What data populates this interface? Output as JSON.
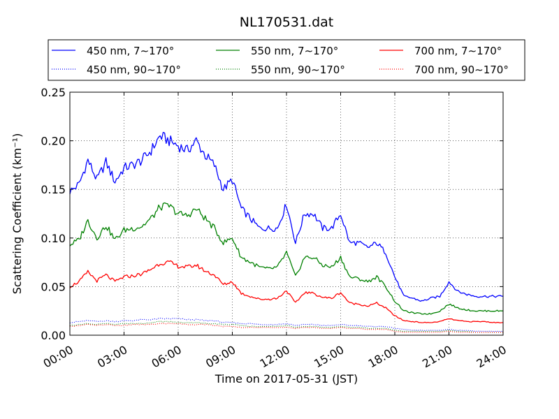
{
  "chart_data": {
    "type": "line",
    "title": "NL170531.dat",
    "xlabel": "Time on 2017-05-31 (JST)",
    "ylabel": "Scattering Coefficient (km⁻¹)",
    "xlim": [
      "00:00",
      "24:00"
    ],
    "ylim": [
      0.0,
      0.25
    ],
    "x_unit": "hours",
    "x_ticks": [
      "00:00",
      "03:00",
      "06:00",
      "09:00",
      "12:00",
      "15:00",
      "18:00",
      "21:00",
      "24:00"
    ],
    "y_ticks": [
      "0.00",
      "0.05",
      "0.10",
      "0.15",
      "0.20",
      "0.25"
    ],
    "grid": true,
    "legend_position": "top, above plot, 3 columns",
    "x": [
      0,
      0.5,
      1,
      1.5,
      2,
      2.5,
      3,
      3.5,
      4,
      4.5,
      5,
      5.5,
      6,
      6.5,
      7,
      7.5,
      8,
      8.5,
      9,
      9.5,
      10,
      10.5,
      11,
      11.5,
      12,
      12.5,
      13,
      13.5,
      14,
      14.5,
      15,
      15.5,
      16,
      16.5,
      17,
      17.5,
      18,
      18.5,
      19,
      19.5,
      20,
      20.5,
      21,
      21.5,
      22,
      22.5,
      23,
      23.5,
      24
    ],
    "series": [
      {
        "name": "450 nm, 7∼170°",
        "color": "#0000ff",
        "style": "solid",
        "values": [
          0.148,
          0.155,
          0.18,
          0.16,
          0.178,
          0.158,
          0.172,
          0.175,
          0.18,
          0.19,
          0.205,
          0.2,
          0.195,
          0.19,
          0.2,
          0.185,
          0.175,
          0.15,
          0.16,
          0.13,
          0.12,
          0.11,
          0.11,
          0.11,
          0.135,
          0.095,
          0.125,
          0.125,
          0.11,
          0.11,
          0.125,
          0.095,
          0.095,
          0.09,
          0.095,
          0.085,
          0.06,
          0.04,
          0.038,
          0.035,
          0.038,
          0.04,
          0.055,
          0.045,
          0.042,
          0.04,
          0.04,
          0.04,
          0.04
        ]
      },
      {
        "name": "450 nm, 90∼170°",
        "color": "#0000ff",
        "style": "dotted",
        "values": [
          0.013,
          0.014,
          0.015,
          0.014,
          0.015,
          0.014,
          0.015,
          0.015,
          0.016,
          0.016,
          0.017,
          0.017,
          0.017,
          0.016,
          0.016,
          0.015,
          0.015,
          0.013,
          0.013,
          0.012,
          0.012,
          0.011,
          0.011,
          0.011,
          0.012,
          0.01,
          0.011,
          0.011,
          0.01,
          0.01,
          0.011,
          0.01,
          0.01,
          0.009,
          0.009,
          0.009,
          0.007,
          0.006,
          0.005,
          0.005,
          0.005,
          0.005,
          0.006,
          0.005,
          0.005,
          0.004,
          0.004,
          0.004,
          0.004
        ]
      },
      {
        "name": "550 nm, 7∼170°",
        "color": "#008000",
        "style": "solid",
        "values": [
          0.093,
          0.098,
          0.118,
          0.1,
          0.113,
          0.098,
          0.108,
          0.11,
          0.112,
          0.12,
          0.132,
          0.133,
          0.125,
          0.123,
          0.13,
          0.12,
          0.11,
          0.095,
          0.1,
          0.08,
          0.075,
          0.07,
          0.068,
          0.07,
          0.085,
          0.06,
          0.08,
          0.08,
          0.072,
          0.07,
          0.08,
          0.06,
          0.058,
          0.055,
          0.06,
          0.05,
          0.035,
          0.025,
          0.023,
          0.022,
          0.022,
          0.025,
          0.032,
          0.028,
          0.026,
          0.025,
          0.025,
          0.025,
          0.025
        ]
      },
      {
        "name": "550 nm, 90∼170°",
        "color": "#008000",
        "style": "dotted",
        "values": [
          0.01,
          0.011,
          0.012,
          0.011,
          0.012,
          0.011,
          0.012,
          0.012,
          0.012,
          0.013,
          0.014,
          0.014,
          0.013,
          0.013,
          0.013,
          0.012,
          0.012,
          0.011,
          0.011,
          0.01,
          0.009,
          0.009,
          0.009,
          0.009,
          0.01,
          0.008,
          0.009,
          0.009,
          0.008,
          0.008,
          0.009,
          0.008,
          0.008,
          0.007,
          0.007,
          0.007,
          0.005,
          0.004,
          0.004,
          0.004,
          0.004,
          0.004,
          0.005,
          0.004,
          0.004,
          0.003,
          0.003,
          0.003,
          0.003
        ]
      },
      {
        "name": "700 nm, 7∼170°",
        "color": "#ff0000",
        "style": "solid",
        "values": [
          0.05,
          0.055,
          0.065,
          0.056,
          0.062,
          0.055,
          0.06,
          0.061,
          0.063,
          0.068,
          0.074,
          0.075,
          0.071,
          0.07,
          0.072,
          0.066,
          0.062,
          0.052,
          0.055,
          0.043,
          0.04,
          0.037,
          0.037,
          0.038,
          0.046,
          0.033,
          0.044,
          0.043,
          0.039,
          0.038,
          0.044,
          0.033,
          0.032,
          0.03,
          0.033,
          0.028,
          0.02,
          0.015,
          0.014,
          0.013,
          0.013,
          0.014,
          0.017,
          0.015,
          0.014,
          0.014,
          0.014,
          0.013,
          0.013
        ]
      },
      {
        "name": "700 nm, 90∼170°",
        "color": "#ff0000",
        "style": "dotted",
        "values": [
          0.009,
          0.01,
          0.011,
          0.01,
          0.011,
          0.01,
          0.01,
          0.011,
          0.011,
          0.011,
          0.012,
          0.012,
          0.012,
          0.011,
          0.011,
          0.011,
          0.01,
          0.009,
          0.009,
          0.008,
          0.008,
          0.008,
          0.008,
          0.008,
          0.008,
          0.007,
          0.008,
          0.008,
          0.007,
          0.007,
          0.008,
          0.007,
          0.007,
          0.006,
          0.006,
          0.006,
          0.004,
          0.003,
          0.003,
          0.003,
          0.003,
          0.003,
          0.004,
          0.003,
          0.003,
          0.003,
          0.003,
          0.003,
          0.003
        ]
      }
    ]
  }
}
